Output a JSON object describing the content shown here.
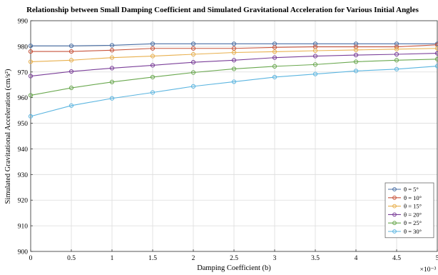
{
  "chart_data": {
    "type": "line",
    "title": "Relationship between Small Damping Coefficient and Simulated Gravitational Acceleration for Various Initial Angles",
    "xlabel": "Damping Coefficient (b)",
    "ylabel": "Simulated Gravitational Acceleration (cm/s²)",
    "x_multiplier": "×10⁻³",
    "xlim": [
      0,
      5
    ],
    "ylim": [
      900,
      990
    ],
    "xticks": [
      "0",
      "0.5",
      "1",
      "1.5",
      "2",
      "2.5",
      "3",
      "3.5",
      "4",
      "4.5",
      "5"
    ],
    "yticks": [
      "900",
      "910",
      "920",
      "930",
      "940",
      "950",
      "960",
      "970",
      "980",
      "990"
    ],
    "grid": true,
    "legend_position": "lower-right",
    "x": [
      0,
      0.5,
      1,
      1.5,
      2,
      2.5,
      3,
      3.5,
      4,
      4.5,
      5
    ],
    "series": [
      {
        "name": "θ = 5°",
        "color": "#4a6fa5",
        "values": [
          980.2,
          980.2,
          980.4,
          981.0,
          981.0,
          981.0,
          981.0,
          981.0,
          981.0,
          981.0,
          981.0
        ]
      },
      {
        "name": "θ = 10°",
        "color": "#c8553d",
        "values": [
          978.0,
          978.0,
          978.5,
          979.2,
          979.2,
          979.2,
          979.6,
          979.8,
          979.8,
          979.8,
          980.6
        ]
      },
      {
        "name": "θ = 15°",
        "color": "#e8b04e",
        "values": [
          974.0,
          974.6,
          975.6,
          976.2,
          976.9,
          977.6,
          977.9,
          978.3,
          978.6,
          978.9,
          979.2
        ]
      },
      {
        "name": "θ = 20°",
        "color": "#7b3f99",
        "values": [
          968.4,
          970.2,
          971.5,
          972.6,
          973.8,
          974.6,
          975.6,
          976.2,
          976.6,
          976.9,
          977.3
        ]
      },
      {
        "name": "θ = 25°",
        "color": "#6aa84f",
        "values": [
          960.9,
          963.8,
          966.1,
          968.0,
          969.8,
          971.2,
          972.2,
          972.9,
          974.0,
          974.6,
          975.0
        ]
      },
      {
        "name": "θ = 30°",
        "color": "#5bb5e0",
        "values": [
          952.7,
          956.9,
          959.7,
          962.0,
          964.4,
          966.2,
          968.0,
          969.2,
          970.4,
          971.1,
          972.3
        ]
      }
    ]
  }
}
